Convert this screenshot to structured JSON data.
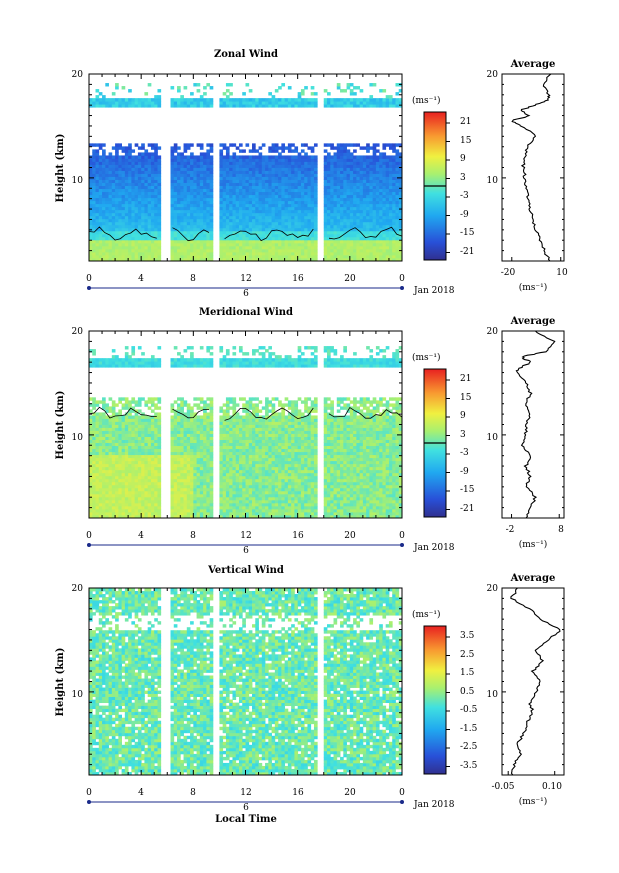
{
  "figure": {
    "xlabel": "Local Time",
    "date_label": "Jan 2018",
    "date_day": "6",
    "colorbar_unit": "(ms⁻¹)",
    "profile_unit": "(ms⁻¹)"
  },
  "chart_data": [
    {
      "type": "heatmap",
      "title": "Zonal Wind",
      "ylabel": "Height (km)",
      "xlabel": "Local Time",
      "x_ticks": [
        "0",
        "4",
        "8",
        "12",
        "16",
        "20",
        "0"
      ],
      "x_range": [
        0,
        24
      ],
      "ylim": [
        2,
        20
      ],
      "y_ticks": [
        "10",
        "20"
      ],
      "colorbar": {
        "range": [
          -24,
          24
        ],
        "ticks": [
          "21",
          "15",
          "9",
          "3",
          "-3",
          "-9",
          "-15",
          "-21"
        ],
        "contour_at": 0
      },
      "data_gaps_hours": [
        [
          5.5,
          6.2
        ],
        [
          9.6,
          10.1
        ],
        [
          17.4,
          18.1
        ]
      ],
      "profile": {
        "title": "Average",
        "x_ticks": [
          "-20",
          "10"
        ],
        "xlim": [
          -26,
          12
        ],
        "heights": [
          2,
          3,
          4,
          5,
          6,
          7,
          8,
          9,
          10,
          11,
          12,
          13,
          14,
          15,
          15.5,
          16,
          16.5,
          17,
          17.5,
          18,
          19,
          20
        ],
        "values": [
          3,
          0,
          -3,
          -5,
          -7,
          -9,
          -10,
          -11,
          -12,
          -13,
          -12,
          -11,
          -5,
          -14,
          -20,
          -9,
          -15,
          -6,
          2,
          3,
          -1,
          4
        ]
      }
    },
    {
      "type": "heatmap",
      "title": "Meridional Wind",
      "ylabel": "Height (km)",
      "xlabel": "Local Time",
      "x_ticks": [
        "0",
        "4",
        "8",
        "12",
        "16",
        "20",
        "0"
      ],
      "x_range": [
        0,
        24
      ],
      "ylim": [
        2,
        20
      ],
      "y_ticks": [
        "10",
        "20"
      ],
      "colorbar": {
        "range": [
          -24,
          24
        ],
        "ticks": [
          "21",
          "15",
          "9",
          "3",
          "-3",
          "-9",
          "-15",
          "-21"
        ],
        "contour_at": 0
      },
      "data_gaps_hours": [
        [
          5.5,
          6.2
        ],
        [
          9.6,
          10.1
        ],
        [
          17.4,
          18.1
        ]
      ],
      "profile": {
        "title": "Average",
        "x_ticks": [
          "-2",
          "8"
        ],
        "xlim": [
          -4,
          9
        ],
        "heights": [
          2,
          3,
          4,
          5,
          6,
          7,
          8,
          9,
          10,
          11,
          12,
          13,
          14,
          15,
          16,
          16.5,
          17,
          17.5,
          18,
          19,
          20
        ],
        "values": [
          1,
          2,
          3,
          1,
          2,
          1,
          2,
          0,
          1,
          1,
          2,
          1,
          2,
          1,
          -1,
          0,
          2,
          0,
          5,
          7,
          3
        ]
      }
    },
    {
      "type": "heatmap",
      "title": "Vertical Wind",
      "ylabel": "Height (km)",
      "xlabel": "Local Time",
      "x_ticks": [
        "0",
        "4",
        "8",
        "12",
        "16",
        "20",
        "0"
      ],
      "x_range": [
        0,
        24
      ],
      "ylim": [
        2,
        20
      ],
      "y_ticks": [
        "10",
        "20"
      ],
      "colorbar": {
        "range": [
          -4,
          4
        ],
        "ticks": [
          "3.5",
          "2.5",
          "1.5",
          "0.5",
          "-0.5",
          "-1.5",
          "-2.5",
          "-3.5"
        ],
        "contour_at": null
      },
      "data_gaps_hours": [
        [
          5.5,
          6.2
        ],
        [
          9.6,
          10.1
        ],
        [
          17.4,
          18.1
        ]
      ],
      "profile": {
        "title": "Average",
        "x_ticks": [
          "-0.05",
          "0.10"
        ],
        "xlim": [
          -0.07,
          0.13
        ],
        "heights": [
          2,
          3,
          4,
          5,
          6,
          7,
          8,
          9,
          10,
          11,
          12,
          13,
          14,
          15,
          16,
          17,
          18,
          19,
          20
        ],
        "values": [
          -0.04,
          -0.03,
          -0.01,
          -0.02,
          0.0,
          0.01,
          0.03,
          0.02,
          0.04,
          0.05,
          0.03,
          0.06,
          0.04,
          0.08,
          0.12,
          0.05,
          0.02,
          -0.04,
          -0.02
        ]
      }
    }
  ]
}
